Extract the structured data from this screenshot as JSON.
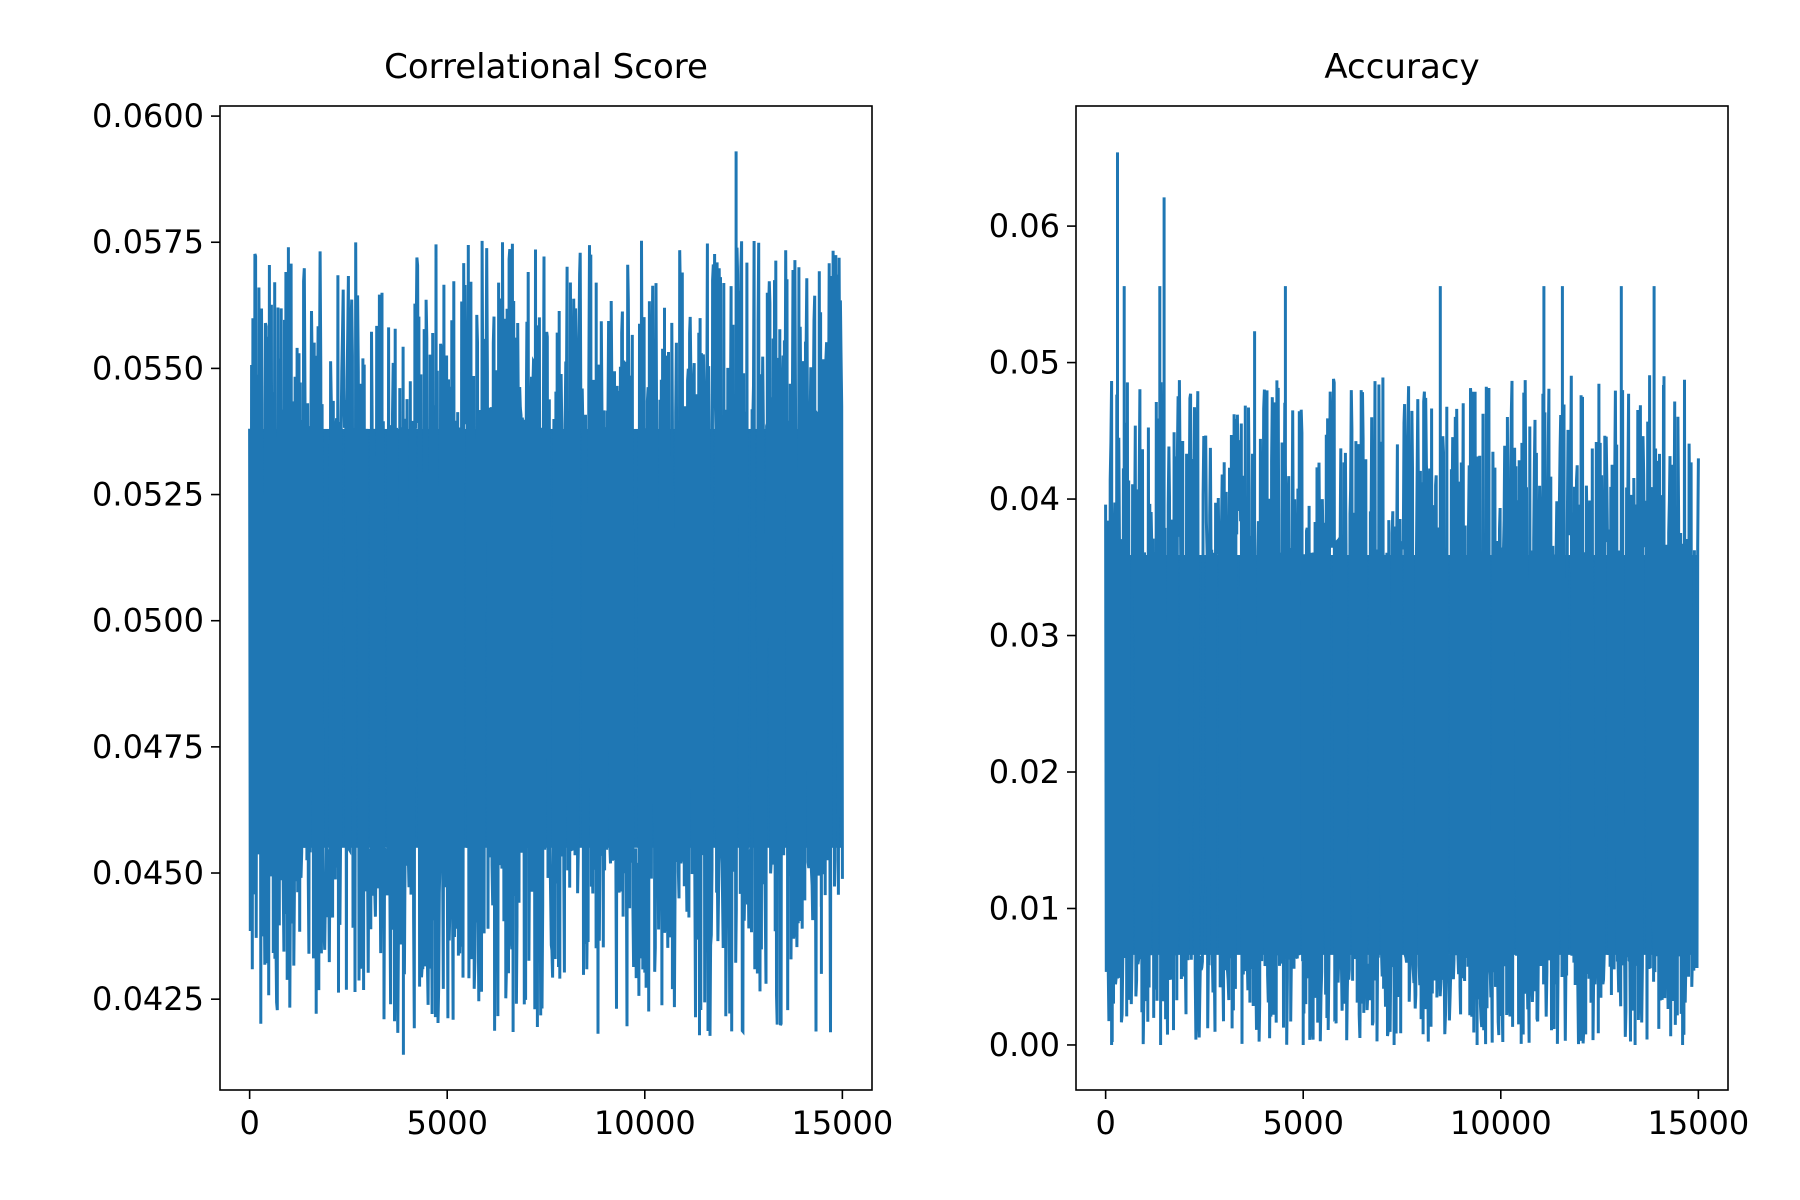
{
  "chart_data": [
    {
      "type": "line",
      "title": "Correlational Score",
      "xlabel": "",
      "ylabel": "",
      "xlim": [
        -750,
        15750
      ],
      "ylim": [
        0.0407,
        0.0602
      ],
      "x_ticks": [
        0,
        5000,
        10000,
        15000
      ],
      "x_tick_labels": [
        "0",
        "5000",
        "10000",
        "15000"
      ],
      "y_ticks": [
        0.0425,
        0.045,
        0.0475,
        0.05,
        0.0525,
        0.055,
        0.0575,
        0.06
      ],
      "y_tick_labels": [
        "0.0425",
        "0.0450",
        "0.0475",
        "0.0500",
        "0.0525",
        "0.0550",
        "0.0575",
        "0.0600"
      ],
      "grid": false,
      "color": "#1f77b4",
      "series": [
        {
          "x_start": 0,
          "x_end": 15000,
          "n_points": 15000,
          "band_low": 0.0455,
          "band_high": 0.0538,
          "range": [
            0.0414,
            0.0593
          ],
          "spikes": [
            {
              "x": 980,
              "y": 0.0574
            },
            {
              "x": 3350,
              "y": 0.0565
            },
            {
              "x": 6300,
              "y": 0.0567
            },
            {
              "x": 8770,
              "y": 0.0567
            },
            {
              "x": 10500,
              "y": 0.0562
            },
            {
              "x": 11830,
              "y": 0.0571
            },
            {
              "x": 12310,
              "y": 0.0593
            },
            {
              "x": 13100,
              "y": 0.0565
            },
            {
              "x": 3890,
              "y": 0.0414
            },
            {
              "x": 7250,
              "y": 0.0427
            },
            {
              "x": 10700,
              "y": 0.0427
            },
            {
              "x": 14470,
              "y": 0.043
            },
            {
              "x": 640,
              "y": 0.0433
            }
          ]
        }
      ]
    },
    {
      "type": "line",
      "title": "Accuracy",
      "xlabel": "",
      "ylabel": "",
      "xlim": [
        -750,
        15750
      ],
      "ylim": [
        -0.0033,
        0.0688
      ],
      "x_ticks": [
        0,
        5000,
        10000,
        15000
      ],
      "x_tick_labels": [
        "0",
        "5000",
        "10000",
        "15000"
      ],
      "y_ticks": [
        0.0,
        0.01,
        0.02,
        0.03,
        0.04,
        0.05,
        0.06
      ],
      "y_tick_labels": [
        "0.00",
        "0.01",
        "0.02",
        "0.03",
        "0.04",
        "0.05",
        "0.06"
      ],
      "grid": false,
      "color": "#1f77b4",
      "series": [
        {
          "x_start": 0,
          "x_end": 15000,
          "n_points": 15000,
          "band_low": 0.0066,
          "band_high": 0.0359,
          "range": [
            0.0,
            0.0654
          ],
          "spikes": [
            {
              "x": 300,
              "y": 0.0654
            },
            {
              "x": 1480,
              "y": 0.0621
            },
            {
              "x": 470,
              "y": 0.0556
            },
            {
              "x": 1370,
              "y": 0.0556
            },
            {
              "x": 4550,
              "y": 0.0556
            },
            {
              "x": 8470,
              "y": 0.0556
            },
            {
              "x": 11090,
              "y": 0.0556
            },
            {
              "x": 11560,
              "y": 0.0556
            },
            {
              "x": 13050,
              "y": 0.0556
            },
            {
              "x": 13880,
              "y": 0.0556
            },
            {
              "x": 3770,
              "y": 0.0523
            },
            {
              "x": 14130,
              "y": 0.049
            },
            {
              "x": 150,
              "y": 0.0
            },
            {
              "x": 1390,
              "y": 0.0
            },
            {
              "x": 5000,
              "y": 0.0
            },
            {
              "x": 7300,
              "y": 0.0
            },
            {
              "x": 9400,
              "y": 0.0
            },
            {
              "x": 13400,
              "y": 0.0
            },
            {
              "x": 14600,
              "y": 0.0
            }
          ]
        }
      ]
    }
  ]
}
